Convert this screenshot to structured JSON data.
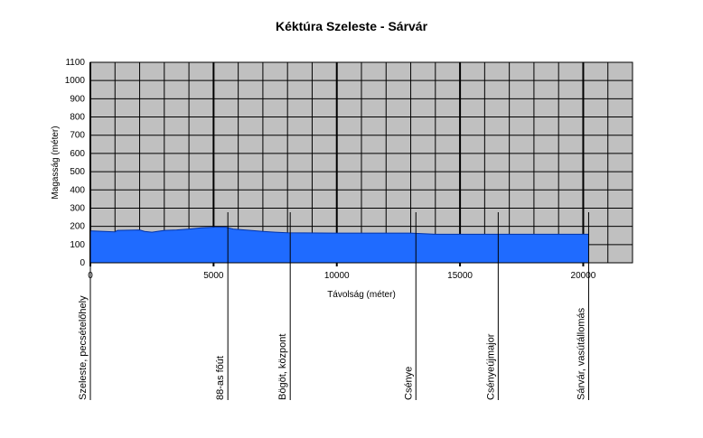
{
  "chart_data": {
    "type": "area",
    "title": "Kéktúra Szeleste - Sárvár",
    "x_label": "Távolság (méter)",
    "y_label": "Magasság (méter)",
    "x": [
      0,
      1000,
      1100,
      2000,
      2200,
      2500,
      3000,
      3500,
      4000,
      4500,
      5000,
      5500,
      5800,
      6500,
      7000,
      7500,
      8000,
      10000,
      13000,
      13500,
      14000,
      20000,
      20220
    ],
    "values": [
      175,
      170,
      178,
      180,
      172,
      168,
      178,
      180,
      185,
      192,
      195,
      195,
      185,
      178,
      172,
      168,
      165,
      163,
      163,
      160,
      157,
      157,
      157
    ],
    "color": "#1f6bff",
    "line_color": "#0033aa",
    "background": "#c0c0c0",
    "xlim": [
      0,
      22000
    ],
    "ylim": [
      0,
      1100
    ],
    "xticks": [
      0,
      5000,
      10000,
      15000,
      20000
    ],
    "yticks": [
      0,
      100,
      200,
      300,
      400,
      500,
      600,
      700,
      800,
      900,
      1000,
      1100
    ],
    "x_minor_grid": [
      1000,
      2000,
      3000,
      4000,
      6000,
      7000,
      8000,
      9000,
      11000,
      12000,
      13000,
      14000,
      16000,
      17000,
      18000,
      19000,
      21000,
      22000
    ],
    "grid": true,
    "landmarks": [
      {
        "label": "Szeleste, pecsételőhely",
        "x": 0
      },
      {
        "label": "88-as főút",
        "x": 5580
      },
      {
        "label": "Bögöt, központ",
        "x": 8110
      },
      {
        "label": "Csénye",
        "x": 13210
      },
      {
        "label": "Csényeújmajor",
        "x": 16550
      },
      {
        "label": "Sárvár, vasútállomás",
        "x": 20220
      }
    ]
  }
}
